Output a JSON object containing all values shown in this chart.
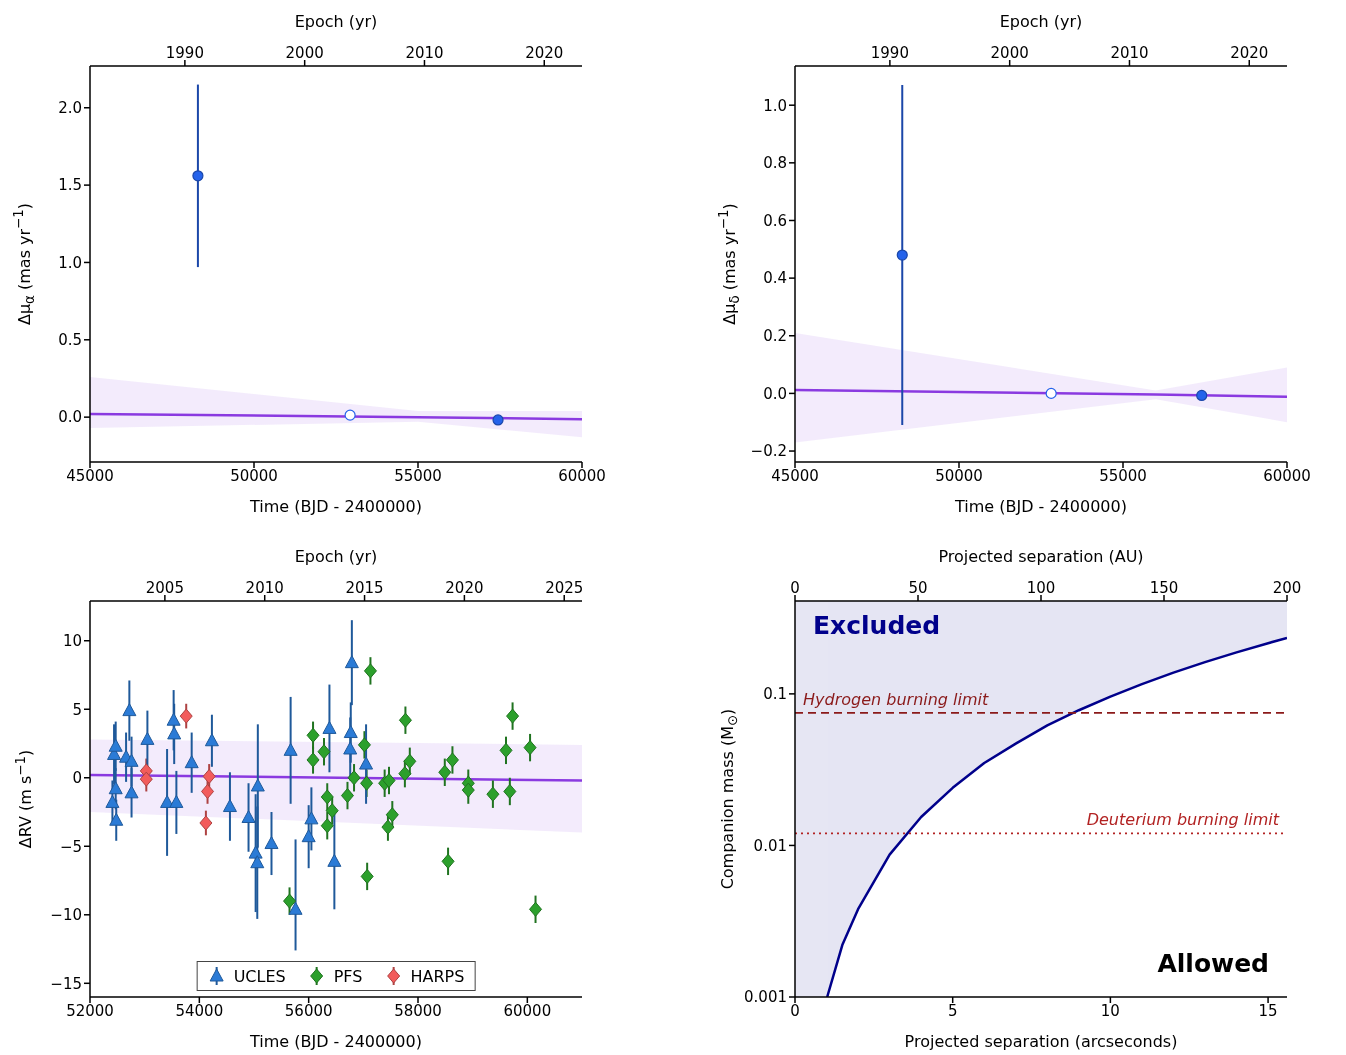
{
  "chart_data": [
    {
      "type": "scatter",
      "xlabel": "Time (BJD - 2400000)",
      "x2label": "Epoch (yr)",
      "ylabel": "Δμ$_{α}$ (mas yr$^{−1}$)",
      "xlim": [
        45000,
        60000
      ],
      "xticks": [
        45000,
        50000,
        55000,
        60000
      ],
      "x2lim": [
        1982.08,
        2023.15
      ],
      "x2ticks": [
        1990,
        2000,
        2010,
        2020
      ],
      "ylim": [
        -0.29,
        2.27
      ],
      "yticks": [
        {
          "value": 0,
          "label": "0.0"
        },
        {
          "value": 0.5,
          "label": "0.5"
        },
        {
          "value": 1,
          "label": "1.0"
        },
        {
          "value": 1.5,
          "label": "1.5"
        },
        {
          "value": 2,
          "label": "2.0"
        }
      ],
      "series": [
        {
          "type": "line",
          "color": "#8a3ae0",
          "x": [
            45000,
            55000,
            60000
          ],
          "values": [
            0.02,
            0.0,
            -0.013
          ],
          "lower": [
            -0.07,
            -0.03,
            -0.13
          ],
          "upper": [
            0.26,
            0.04,
            0.04
          ]
        },
        {
          "marker": "circle",
          "color": "#2563eb",
          "x": [
            48290,
            57440
          ],
          "values": [
            1.56,
            -0.018
          ],
          "errors": [
            0.59,
            null
          ]
        },
        {
          "marker": "circle",
          "color": "#ffffff",
          "x": [
            52930
          ],
          "values": [
            0.013
          ]
        }
      ]
    },
    {
      "type": "scatter",
      "xlabel": "Time (BJD - 2400000)",
      "x2label": "Epoch (yr)",
      "ylabel": "Δμ$_{δ}$ (mas yr$^{−1}$)",
      "xlim": [
        45000,
        60000
      ],
      "xticks": [
        45000,
        50000,
        55000,
        60000
      ],
      "x2lim": [
        1982.08,
        2023.15
      ],
      "x2ticks": [
        1990,
        2000,
        2010,
        2020
      ],
      "ylim": [
        -0.238,
        1.136
      ],
      "yticks": [
        {
          "value": -0.2,
          "label": "−0.2"
        },
        {
          "value": 0,
          "label": "0.0"
        },
        {
          "value": 0.2,
          "label": "0.2"
        },
        {
          "value": 0.4,
          "label": "0.4"
        },
        {
          "value": 0.6,
          "label": "0.6"
        },
        {
          "value": 0.8,
          "label": "0.8"
        },
        {
          "value": 1,
          "label": "1.0"
        }
      ],
      "series": [
        {
          "type": "line",
          "color": "#8a3ae0",
          "x": [
            45000,
            56000,
            60000
          ],
          "values": [
            0.012,
            -0.004,
            -0.012
          ],
          "lower": [
            -0.17,
            -0.02,
            -0.1
          ],
          "upper": [
            0.21,
            0.01,
            0.09
          ]
        },
        {
          "marker": "circle",
          "color": "#2563eb",
          "x": [
            48270,
            57400
          ],
          "values": [
            0.48,
            -0.007
          ],
          "errors": [
            0.59,
            null
          ]
        },
        {
          "marker": "circle",
          "color": "#ffffff",
          "x": [
            52810
          ],
          "values": [
            0.0
          ]
        }
      ]
    },
    {
      "type": "scatter",
      "xlabel": "Time (BJD - 2400000)",
      "x2label": "Epoch (yr)",
      "ylabel": "ΔRV (m s$^{−1}$)",
      "legend": "bottom",
      "xlim": [
        52000,
        61000
      ],
      "xticks": [
        52000,
        54000,
        56000,
        58000,
        60000
      ],
      "x2lim": [
        2001.25,
        2025.89
      ],
      "x2ticks": [
        2005,
        2010,
        2015,
        2020,
        2025
      ],
      "ylim": [
        -16,
        12.9
      ],
      "yticks": [
        {
          "value": -15,
          "label": "−15"
        },
        {
          "value": -10,
          "label": "−10"
        },
        {
          "value": -5,
          "label": "−5"
        },
        0,
        5,
        10
      ],
      "series": [
        {
          "type": "line",
          "color": "#8a3ae0",
          "x": [
            52000,
            61000
          ],
          "values": [
            0.2,
            -0.2
          ],
          "lower": [
            -2.5,
            -4.0
          ],
          "upper": [
            2.8,
            2.4
          ]
        },
        {
          "name": "UCLES",
          "marker": "triangle",
          "color": "#2b7bd6",
          "x": [
            52410,
            52440,
            52470,
            52470,
            52480,
            52660,
            52720,
            52760,
            52760,
            53050,
            53410,
            53500,
            53530,
            53540,
            53580,
            53860,
            54230,
            54560,
            54900,
            55030,
            55060,
            55070,
            55320,
            55670,
            55760,
            56000,
            56050,
            56380,
            56470,
            56770,
            56760,
            56790,
            57050
          ],
          "values": [
            -1.8,
            1.7,
            2.3,
            -0.8,
            -3.1,
            1.5,
            4.9,
            1.2,
            -1.1,
            2.8,
            -1.8,
            null,
            4.2,
            3.2,
            -1.8,
            1.1,
            2.7,
            -2.1,
            -2.9,
            -5.5,
            -6.2,
            -0.6,
            -4.8,
            2.0,
            -9.6,
            -4.3,
            -3.0,
            3.6,
            -6.1,
            3.3,
            2.1,
            8.4,
            1.0
          ],
          "errors": [
            1.6,
            2.2,
            1.8,
            1.5,
            1.5,
            1.8,
            2.2,
            1.8,
            1.8,
            2.1,
            3.9,
            null,
            2.2,
            2.2,
            2.3,
            2.2,
            1.9,
            2.5,
            2.5,
            4.3,
            4.1,
            4.5,
            2.3,
            3.9,
            [
              -12.6,
              -4.5
            ],
            2.3,
            2.3,
            3.2,
            3.5,
            2.2,
            2.3,
            3.1,
            2.9
          ]
        },
        {
          "name": "PFS",
          "marker": "diamond",
          "color": "#2ca02c",
          "x": [
            55650,
            56080,
            56080,
            56280,
            56340,
            56430,
            56340,
            56710,
            56830,
            57020,
            57060,
            57070,
            57130,
            57390,
            57470,
            57450,
            57530,
            57770,
            57760,
            57850,
            58490,
            58630,
            58550,
            58920,
            58920,
            59370,
            59610,
            59680,
            59730,
            60050,
            60150
          ],
          "values": [
            -9.0,
            3.1,
            1.3,
            1.9,
            -1.4,
            -2.4,
            -3.5,
            -1.3,
            0.0,
            2.4,
            -0.4,
            -7.2,
            7.8,
            -0.4,
            -0.2,
            -3.6,
            -2.7,
            4.2,
            0.3,
            1.2,
            0.4,
            1.3,
            -6.1,
            -0.4,
            -0.9,
            -1.2,
            2.0,
            -1.0,
            4.5,
            2.2,
            -9.6
          ],
          "errors": [
            1.0,
            1.0,
            1.0,
            1.0,
            1.0,
            1.0,
            1.0,
            1.0,
            1.0,
            1.0,
            1.0,
            1.0,
            1.0,
            1.0,
            1.0,
            1.0,
            1.0,
            1.0,
            1.0,
            1.0,
            1.0,
            1.0,
            1.0,
            1.0,
            1.0,
            1.0,
            1.0,
            1.0,
            1.0,
            1.0,
            1.0
          ]
        },
        {
          "name": "HARPS",
          "marker": "diamond",
          "color": "#f25c5c",
          "x": [
            53030,
            53030,
            53760,
            54180,
            54150,
            54120
          ],
          "values": [
            0.5,
            -0.1,
            4.5,
            0.1,
            -1.0,
            -3.3
          ],
          "errors": [
            0.9,
            0.9,
            0.9,
            0.9,
            0.9,
            0.9
          ]
        }
      ]
    },
    {
      "type": "line",
      "xlabel": "Projected separation (arcseconds)",
      "x2label": "Projected separation (AU)",
      "ylabel": "Companion mass (M$_{⊙}$)",
      "log": "y",
      "xlim": [
        0,
        15.6
      ],
      "xticks": [
        0,
        5,
        10,
        15
      ],
      "x2lim": [
        0,
        200
      ],
      "x2ticks": [
        0,
        50,
        100,
        150,
        200
      ],
      "ylim": [
        0.001,
        0.41
      ],
      "yticks": [
        0.001,
        0.01,
        0.1
      ],
      "series": [
        {
          "color": "#00008b",
          "x": [
            1.02,
            1.5,
            2,
            3,
            4,
            5,
            6,
            7,
            8,
            9,
            10,
            11,
            12,
            13,
            14,
            15,
            15.6
          ],
          "values": [
            0.001,
            0.0022,
            0.0038,
            0.0087,
            0.0154,
            0.024,
            0.035,
            0.047,
            0.062,
            0.078,
            0.096,
            0.116,
            0.138,
            0.162,
            0.188,
            0.216,
            0.234
          ],
          "lower": [
            0.001,
            0.0022,
            0.0038,
            0.0087,
            0.0154,
            0.024,
            0.035,
            0.047,
            0.062,
            0.078,
            0.096,
            0.116,
            0.138,
            0.162,
            0.188,
            0.216,
            0.234
          ],
          "upper": [
            0.41,
            0.41,
            0.41,
            0.41,
            0.41,
            0.41,
            0.41,
            0.41,
            0.41,
            0.41,
            0.41,
            0.41,
            0.41,
            0.41,
            0.41,
            0.41,
            0.41
          ]
        }
      ],
      "bands": [
        {
          "axis": "x",
          "from": 0,
          "to": 1.02,
          "color": "#e6e6f3"
        }
      ],
      "ref_lines": [
        {
          "axis": "y",
          "value": 0.075,
          "label": "Hydrogen burning limit",
          "color": "#8b1a1a",
          "line_style": "dashed"
        },
        {
          "axis": "y",
          "value": 0.012,
          "label": "Deuterium burning limit",
          "color": "#b22222",
          "line_style": "dotted"
        }
      ],
      "annotations": [
        "Excluded",
        "Allowed"
      ]
    }
  ]
}
